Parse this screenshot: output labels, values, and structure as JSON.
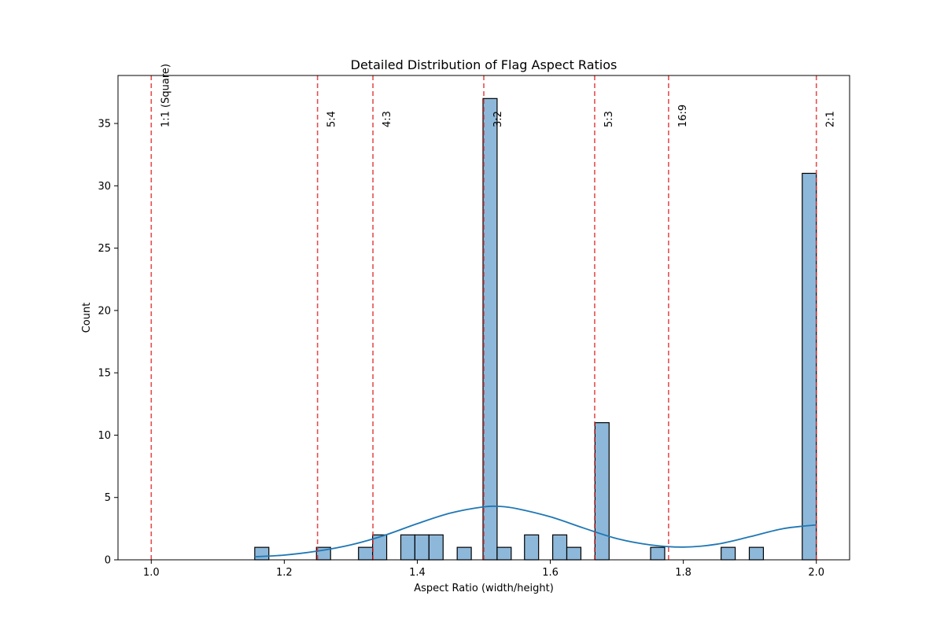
{
  "chart_data": {
    "type": "bar",
    "title": "Detailed Distribution of Flag Aspect Ratios",
    "xlabel": "Aspect Ratio (width/height)",
    "ylabel": "Count",
    "xlim": [
      0.95,
      2.05
    ],
    "ylim": [
      0,
      38.85
    ],
    "xticks": [
      1.0,
      1.2,
      1.4,
      1.6,
      1.8,
      2.0
    ],
    "xtick_labels": [
      "1.0",
      "1.2",
      "1.4",
      "1.6",
      "1.8",
      "2.0"
    ],
    "yticks": [
      0,
      5,
      10,
      15,
      20,
      25,
      30,
      35
    ],
    "ytick_labels": [
      "0",
      "5",
      "10",
      "15",
      "20",
      "25",
      "30",
      "35"
    ],
    "bin_width": 0.0212,
    "histogram": {
      "name": "Count",
      "bins": [
        {
          "start": 1.1556,
          "count": 1
        },
        {
          "start": 1.2484,
          "count": 1
        },
        {
          "start": 1.3116,
          "count": 1
        },
        {
          "start": 1.3328,
          "count": 2
        },
        {
          "start": 1.3752,
          "count": 2
        },
        {
          "start": 1.3964,
          "count": 2
        },
        {
          "start": 1.4176,
          "count": 2
        },
        {
          "start": 1.46,
          "count": 1
        },
        {
          "start": 1.4988,
          "count": 37
        },
        {
          "start": 1.52,
          "count": 1
        },
        {
          "start": 1.5612,
          "count": 2
        },
        {
          "start": 1.6036,
          "count": 2
        },
        {
          "start": 1.6248,
          "count": 1
        },
        {
          "start": 1.6672,
          "count": 11
        },
        {
          "start": 1.7508,
          "count": 1
        },
        {
          "start": 1.8568,
          "count": 1
        },
        {
          "start": 1.8992,
          "count": 1
        },
        {
          "start": 1.9788,
          "count": 31
        }
      ],
      "color": "#8db8da",
      "edge_color": "#000000"
    },
    "kde": {
      "color": "#1f77b4",
      "x": [
        1.1556,
        1.2,
        1.25,
        1.3,
        1.35,
        1.4,
        1.45,
        1.5,
        1.525,
        1.55,
        1.6,
        1.65,
        1.7,
        1.75,
        1.8,
        1.85,
        1.9,
        1.95,
        2.0
      ],
      "y": [
        0.25,
        0.38,
        0.7,
        1.2,
        1.95,
        2.9,
        3.75,
        4.25,
        4.28,
        4.1,
        3.45,
        2.55,
        1.7,
        1.2,
        1.02,
        1.25,
        1.85,
        2.5,
        2.8
      ]
    },
    "reference_lines": {
      "color": "#e03030",
      "style": "dashed",
      "lines": [
        {
          "x": 1.0,
          "label": "1:1 (Square)"
        },
        {
          "x": 1.25,
          "label": "5:4"
        },
        {
          "x": 1.3333,
          "label": "4:3"
        },
        {
          "x": 1.5,
          "label": "3:2"
        },
        {
          "x": 1.6667,
          "label": "5:3"
        },
        {
          "x": 1.7778,
          "label": "16:9"
        },
        {
          "x": 2.0,
          "label": "2:1"
        }
      ]
    },
    "grid": false,
    "legend": "none"
  }
}
